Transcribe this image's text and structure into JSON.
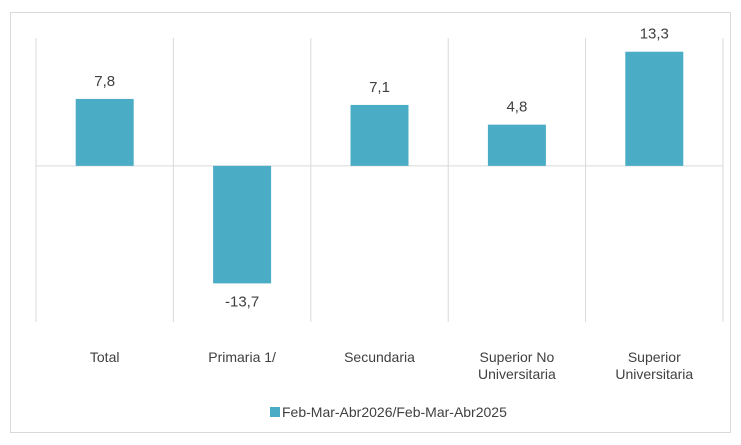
{
  "chart_data": {
    "type": "bar",
    "categories": [
      "Total",
      "Primaria 1/",
      "Secundaria",
      "Superior No Universitaria",
      "Superior Universitaria"
    ],
    "series": [
      {
        "name": "Feb-Mar-Abr2026/Feb-Mar-Abr2025",
        "color": "#4bacc6",
        "values": [
          7.8,
          -13.7,
          7.1,
          4.8,
          13.3
        ],
        "value_labels": [
          "7,8",
          "-13,7",
          "7,1",
          "4,8",
          "13,3"
        ]
      }
    ],
    "ylim": [
      -18.2,
      14.9
    ],
    "legend": "bottom"
  }
}
